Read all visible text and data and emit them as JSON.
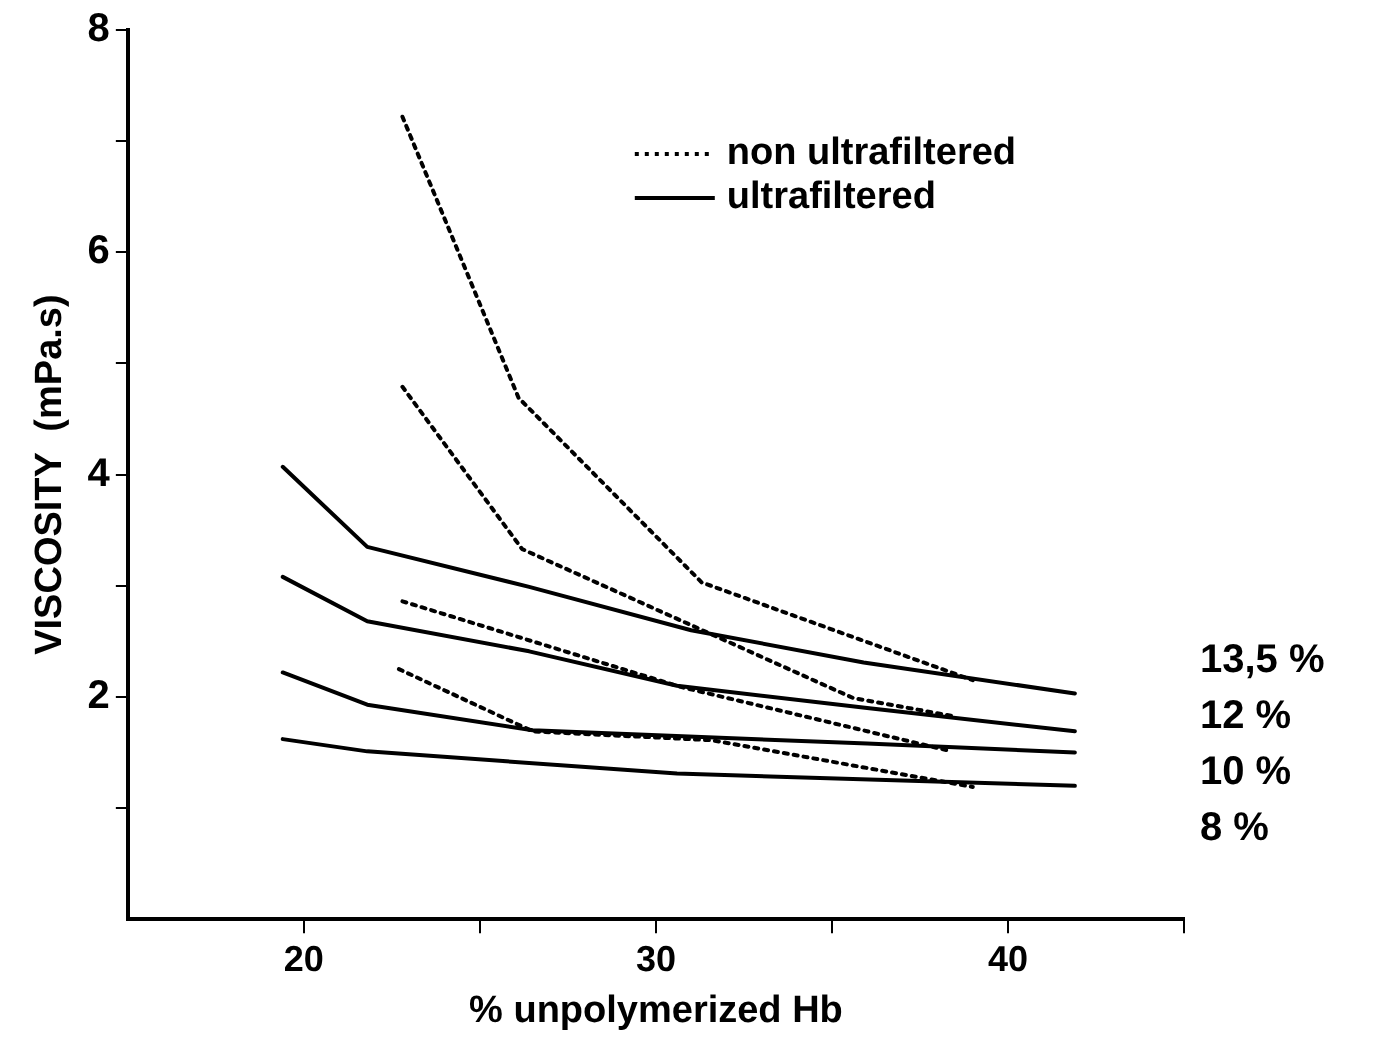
{
  "chart_data": {
    "type": "line",
    "xlabel": "% unpolymerized Hb",
    "ylabel": "VISCOSITY  (mPa.s)",
    "xlim": [
      15,
      45
    ],
    "xticks": [
      20,
      {
        "value": 25,
        "label": null
      },
      30,
      {
        "value": 35,
        "label": null
      },
      40,
      {
        "value": 45,
        "label": null
      }
    ],
    "ylim": [
      0,
      8
    ],
    "yticks": [
      {
        "value": 1,
        "label": null
      },
      2,
      {
        "value": 3,
        "label": null
      },
      4,
      {
        "value": 5,
        "label": null
      },
      6,
      {
        "value": 7,
        "label": null
      },
      8
    ],
    "grid": false,
    "legend": "top right",
    "marker": "none",
    "series": [
      {
        "name": "non ultrafiltered",
        "line_style": "dotted",
        "color": "#000000",
        "x": [
          22.8,
          26.1,
          31.3,
          39.0
        ],
        "values": [
          7.22,
          4.69,
          3.03,
          2.15
        ]
      },
      {
        "line_style": "dotted",
        "color": "#000000",
        "x": [
          22.8,
          26.2,
          35.6,
          38.4
        ],
        "values": [
          4.79,
          3.33,
          1.99,
          1.83
        ]
      },
      {
        "line_style": "dotted",
        "color": "#000000",
        "x": [
          22.8,
          30.7,
          38.4
        ],
        "values": [
          2.86,
          2.09,
          1.51
        ]
      },
      {
        "line_style": "dotted",
        "color": "#000000",
        "x": [
          22.7,
          26.5,
          31.6,
          39.0
        ],
        "values": [
          2.25,
          1.69,
          1.61,
          1.19
        ]
      },
      {
        "name": "ultrafiltered",
        "line_style": "solid",
        "color": "#000000",
        "x": [
          19.4,
          21.8,
          26.4,
          31.0,
          35.9,
          41.9
        ],
        "values": [
          4.07,
          3.35,
          2.99,
          2.6,
          2.31,
          2.03
        ]
      },
      {
        "line_style": "solid",
        "color": "#000000",
        "x": [
          19.4,
          21.8,
          26.4,
          30.6,
          36.0,
          41.9
        ],
        "values": [
          3.08,
          2.68,
          2.41,
          2.1,
          1.9,
          1.69
        ]
      },
      {
        "line_style": "solid",
        "color": "#000000",
        "x": [
          19.4,
          21.8,
          26.5,
          36.0,
          41.9
        ],
        "values": [
          2.22,
          1.93,
          1.7,
          1.58,
          1.5
        ]
      },
      {
        "line_style": "solid",
        "color": "#000000",
        "x": [
          19.4,
          21.8,
          30.6,
          41.9
        ],
        "values": [
          1.62,
          1.51,
          1.31,
          1.2
        ]
      }
    ],
    "annotations": [
      "13,5 %",
      "12 %",
      "10 %",
      "8 %"
    ]
  }
}
